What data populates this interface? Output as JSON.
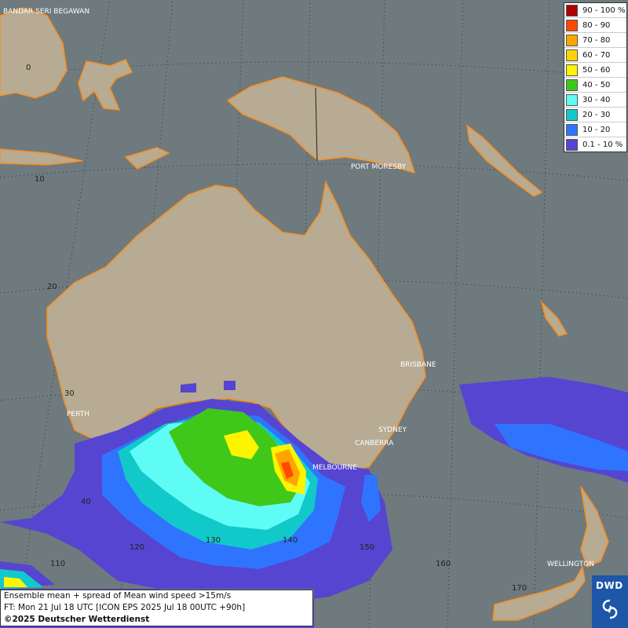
{
  "map": {
    "background_color": "#6e7a7e",
    "land_color": "#b7ab93",
    "coast_color": "#ff8c1a",
    "cities": [
      {
        "name": "BANDAR SERI BEGAWAN"
      },
      {
        "name": "PORT MORESBY"
      },
      {
        "name": "BRISBANE"
      },
      {
        "name": "PERTH"
      },
      {
        "name": "SYDNEY"
      },
      {
        "name": "CANBERRA"
      },
      {
        "name": "MELBOURNE"
      },
      {
        "name": "WELLINGTON"
      }
    ],
    "lat_labels": [
      "0",
      "10",
      "20",
      "30",
      "40"
    ],
    "lon_labels": [
      "110",
      "120",
      "130",
      "140",
      "150",
      "160",
      "170"
    ]
  },
  "legend": {
    "items": [
      {
        "label": "90 - 100 %",
        "color": "#b00000"
      },
      {
        "label": "80 - 90",
        "color": "#ff4a00"
      },
      {
        "label": "70 - 80",
        "color": "#ffa500"
      },
      {
        "label": "60 - 70",
        "color": "#ffd200"
      },
      {
        "label": "50 - 60",
        "color": "#fff400"
      },
      {
        "label": "40 - 50",
        "color": "#3fc81a"
      },
      {
        "label": "30 - 40",
        "color": "#5ffcf6"
      },
      {
        "label": "20 - 30",
        "color": "#12c9c9"
      },
      {
        "label": "10 - 20",
        "color": "#2f74ff"
      },
      {
        "label": "0.1 - 10 %",
        "color": "#5645d0"
      }
    ]
  },
  "info": {
    "line1": "Ensemble mean + spread of Mean wind speed >15m/s",
    "line2": "FT: Mon 21 Jul 18 UTC [ICON EPS 2025 Jul 18 00UTC +90h]",
    "line3": "©2025 Deutscher Wetterdienst"
  },
  "logo": {
    "text": "DWD"
  }
}
